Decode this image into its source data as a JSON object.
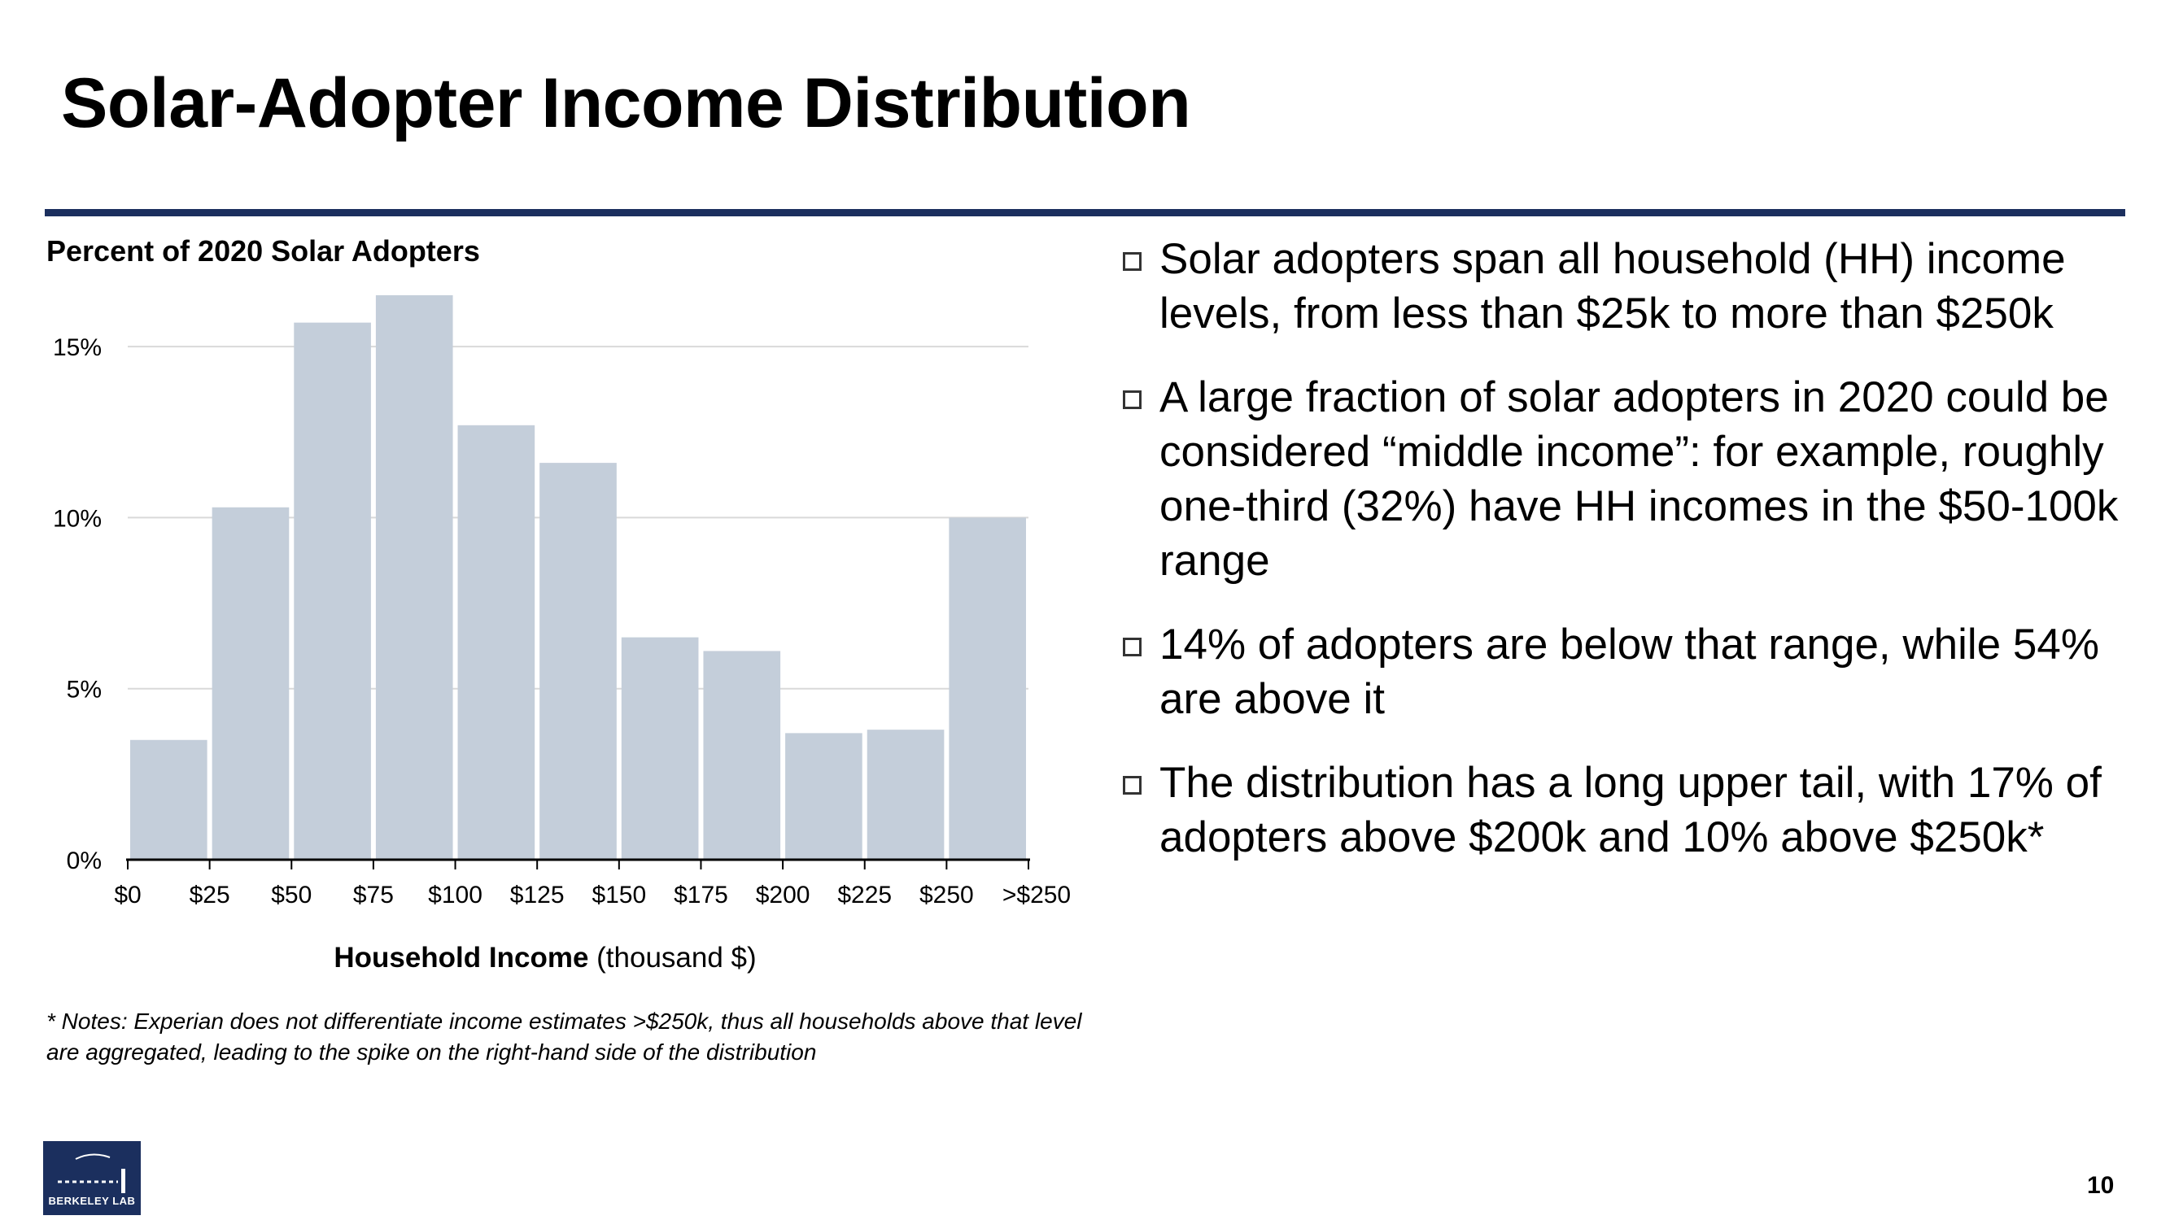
{
  "slide": {
    "title": "Solar-Adopter Income Distribution",
    "page_number": "10"
  },
  "chart_data": {
    "type": "bar",
    "ylabel": "Percent of 2020 Solar Adopters",
    "xlabel_bold": "Household Income",
    "xlabel_rest": " (thousand $)",
    "ylim": [
      0,
      16.5
    ],
    "yticks": [
      0,
      5,
      10,
      15
    ],
    "ytick_labels": [
      "0%",
      "5%",
      "10%",
      "15%"
    ],
    "xtick_labels": [
      "$0",
      "$25",
      "$50",
      "$75",
      "$100",
      "$125",
      "$150",
      "$175",
      "$200",
      "$225",
      "$250",
      ">$250"
    ],
    "bins": [
      "$0-25k",
      "$25-50k",
      "$50-75k",
      "$75-100k",
      "$100-125k",
      "$125-150k",
      "$150-175k",
      "$175-200k",
      "$200-225k",
      "$225-250k",
      ">$250k"
    ],
    "values": [
      3.5,
      10.3,
      15.7,
      16.5,
      12.7,
      11.6,
      6.5,
      6.1,
      3.7,
      3.8,
      10.0
    ],
    "grid": true,
    "colors": {
      "bar": "#c4ceda",
      "grid": "#d9d9d9",
      "axis": "#000000"
    }
  },
  "note": "* Notes: Experian does not differentiate income estimates >$250k, thus all households above that level are aggregated, leading to the spike on the right-hand side of the distribution",
  "bullets": [
    "Solar adopters span all household (HH) income levels, from less than $25k to more than $250k",
    "A large fraction of solar adopters in 2020 could be considered “middle income”: for example, roughly one-third (32%) have HH incomes in the $50-100k range",
    "14% of adopters are below that range, while 54% are above it",
    "The distribution has a long upper tail, with 17% of adopters above $200k and 10% above $250k*"
  ],
  "logo": {
    "text": "BERKELEY LAB",
    "color": "#1b2f5e"
  }
}
